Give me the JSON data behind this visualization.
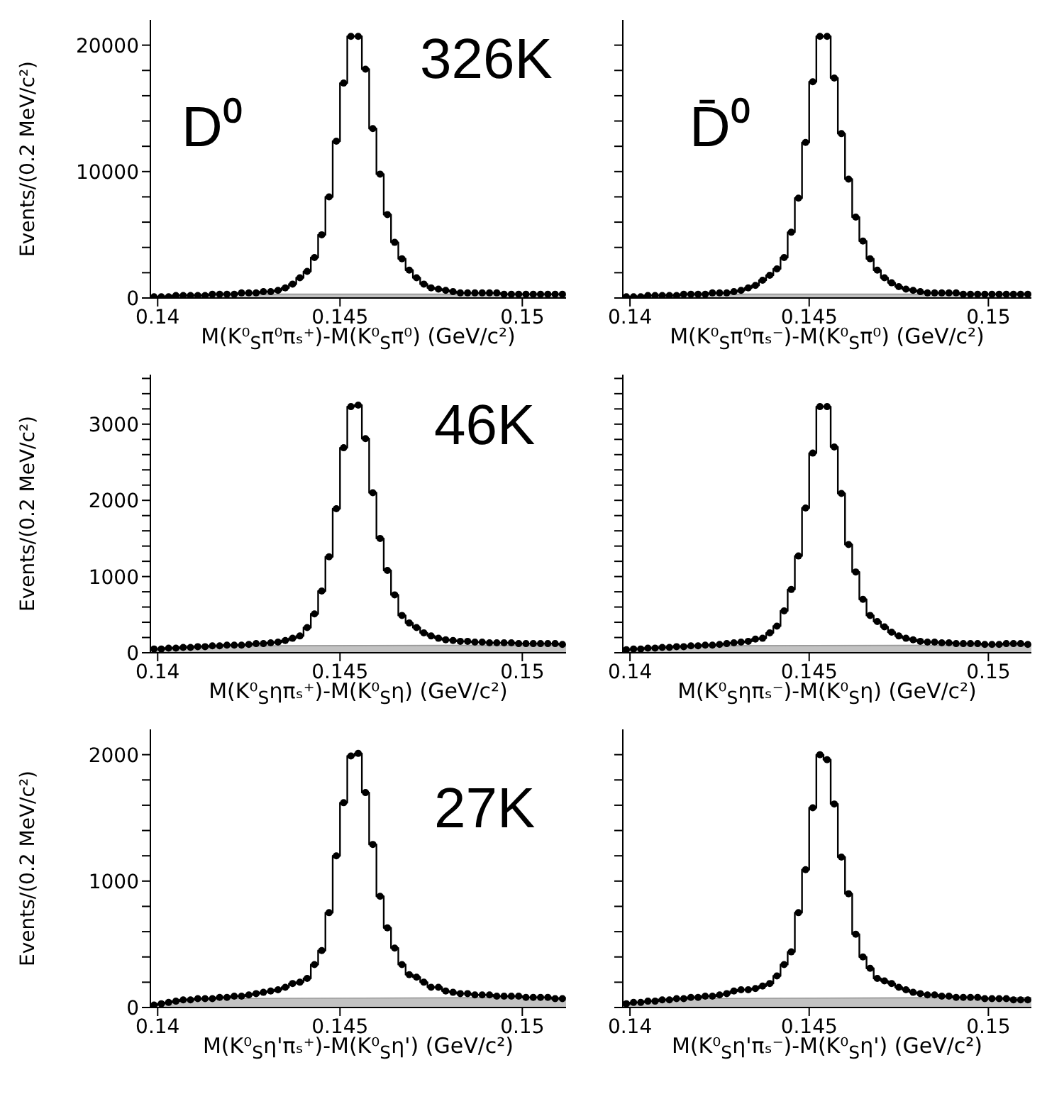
{
  "chart_data": [
    {
      "type": "step",
      "xlabel": "M(K⁰$_{S}$π⁰πₛ⁺)-M(K⁰$_{S}$π⁰) (GeV/c²)",
      "ylabel": "Events/(0.2 MeV/c²)",
      "annotations": [
        "D⁰",
        "326K"
      ],
      "xlim": [
        0.1398,
        0.1512
      ],
      "xticks": [
        0.14,
        0.145,
        0.15
      ],
      "ylim": [
        0,
        22000
      ],
      "yticks": [
        0,
        {
          "value": 2000,
          "label": null
        },
        {
          "value": 4000,
          "label": null
        },
        {
          "value": 6000,
          "label": null
        },
        {
          "value": 8000,
          "label": null
        },
        10000,
        {
          "value": 12000,
          "label": null
        },
        {
          "value": 14000,
          "label": null
        },
        {
          "value": 16000,
          "label": null
        },
        {
          "value": 18000,
          "label": null
        },
        20000
      ],
      "x": [
        0.1399,
        0.1401,
        0.1403,
        0.1405,
        0.1407,
        0.1409,
        0.1411,
        0.1413,
        0.1415,
        0.1417,
        0.1419,
        0.1421,
        0.1423,
        0.1425,
        0.1427,
        0.1429,
        0.1431,
        0.1433,
        0.1435,
        0.1437,
        0.1439,
        0.1441,
        0.1443,
        0.1445,
        0.1447,
        0.1449,
        0.1451,
        0.1453,
        0.1455,
        0.1457,
        0.1459,
        0.1461,
        0.1463,
        0.1465,
        0.1467,
        0.1469,
        0.1471,
        0.1473,
        0.1475,
        0.1477,
        0.1479,
        0.1481,
        0.1483,
        0.1485,
        0.1487,
        0.1489,
        0.1491,
        0.1493,
        0.1495,
        0.1497,
        0.1499,
        0.1501,
        0.1503,
        0.1505,
        0.1507,
        0.1509,
        0.1511
      ],
      "series": [
        {
          "type": "area",
          "color": "#999999",
          "x": [
            0.1398,
            0.1402,
            0.1408,
            0.1512
          ],
          "values": [
            0,
            200,
            300,
            300
          ]
        },
        {
          "color": "#000000",
          "marker": "circle",
          "values": [
            100,
            100,
            100,
            200,
            200,
            200,
            200,
            200,
            300,
            300,
            300,
            300,
            400,
            400,
            400,
            500,
            500,
            600,
            800,
            1100,
            1600,
            2100,
            3200,
            5000,
            8000,
            12400,
            17000,
            20700,
            20700,
            18100,
            13400,
            9800,
            6600,
            4400,
            3100,
            2200,
            1600,
            1100,
            800,
            700,
            600,
            500,
            400,
            400,
            400,
            400,
            400,
            400,
            300,
            300,
            300,
            300,
            300,
            300,
            300,
            300,
            300
          ]
        }
      ]
    },
    {
      "type": "step",
      "xlabel": "M(K⁰$_{S}$π⁰πₛ⁻)-M(K⁰$_{S}$π⁰) (GeV/c²)",
      "annotations": [
        "D̄⁰"
      ],
      "tick_labels": "x",
      "xlim": [
        0.1398,
        0.1512
      ],
      "xticks": [
        0.14,
        0.145,
        0.15
      ],
      "ylim": [
        0,
        22000
      ],
      "yticks": [
        0,
        {
          "value": 2000,
          "label": null
        },
        {
          "value": 4000,
          "label": null
        },
        {
          "value": 6000,
          "label": null
        },
        {
          "value": 8000,
          "label": null
        },
        10000,
        {
          "value": 12000,
          "label": null
        },
        {
          "value": 14000,
          "label": null
        },
        {
          "value": 16000,
          "label": null
        },
        {
          "value": 18000,
          "label": null
        },
        20000
      ],
      "x": [
        0.1399,
        0.1401,
        0.1403,
        0.1405,
        0.1407,
        0.1409,
        0.1411,
        0.1413,
        0.1415,
        0.1417,
        0.1419,
        0.1421,
        0.1423,
        0.1425,
        0.1427,
        0.1429,
        0.1431,
        0.1433,
        0.1435,
        0.1437,
        0.1439,
        0.1441,
        0.1443,
        0.1445,
        0.1447,
        0.1449,
        0.1451,
        0.1453,
        0.1455,
        0.1457,
        0.1459,
        0.1461,
        0.1463,
        0.1465,
        0.1467,
        0.1469,
        0.1471,
        0.1473,
        0.1475,
        0.1477,
        0.1479,
        0.1481,
        0.1483,
        0.1485,
        0.1487,
        0.1489,
        0.1491,
        0.1493,
        0.1495,
        0.1497,
        0.1499,
        0.1501,
        0.1503,
        0.1505,
        0.1507,
        0.1509,
        0.1511
      ],
      "series": [
        {
          "type": "area",
          "color": "#999999",
          "x": [
            0.1398,
            0.1402,
            0.1408,
            0.1512
          ],
          "values": [
            0,
            200,
            300,
            300
          ]
        },
        {
          "color": "#000000",
          "marker": "circle",
          "values": [
            100,
            100,
            100,
            200,
            200,
            200,
            200,
            200,
            300,
            300,
            300,
            300,
            400,
            400,
            400,
            500,
            600,
            800,
            1000,
            1400,
            1800,
            2300,
            3200,
            5200,
            7900,
            12300,
            17100,
            20700,
            20700,
            17400,
            13000,
            9400,
            6400,
            4500,
            3100,
            2200,
            1600,
            1200,
            900,
            700,
            600,
            500,
            400,
            400,
            400,
            400,
            400,
            300,
            300,
            300,
            300,
            300,
            300,
            300,
            300,
            300,
            300
          ]
        }
      ]
    },
    {
      "type": "step",
      "xlabel": "M(K⁰$_{S}$ηπₛ⁺)-M(K⁰$_{S}$η) (GeV/c²)",
      "ylabel": "Events/(0.2 MeV/c²)",
      "annotations": [
        "46K"
      ],
      "xlim": [
        0.1398,
        0.1512
      ],
      "xticks": [
        0.14,
        0.145,
        0.15
      ],
      "ylim": [
        0,
        3650
      ],
      "yticks": [
        0,
        {
          "value": 200,
          "label": null
        },
        {
          "value": 400,
          "label": null
        },
        {
          "value": 600,
          "label": null
        },
        {
          "value": 800,
          "label": null
        },
        1000,
        {
          "value": 1200,
          "label": null
        },
        {
          "value": 1400,
          "label": null
        },
        {
          "value": 1600,
          "label": null
        },
        {
          "value": 1800,
          "label": null
        },
        2000,
        {
          "value": 2200,
          "label": null
        },
        {
          "value": 2400,
          "label": null
        },
        {
          "value": 2600,
          "label": null
        },
        {
          "value": 2800,
          "label": null
        },
        3000,
        {
          "value": 3200,
          "label": null
        },
        {
          "value": 3400,
          "label": null
        },
        {
          "value": 3600,
          "label": null
        }
      ],
      "x": [
        0.1399,
        0.1401,
        0.1403,
        0.1405,
        0.1407,
        0.1409,
        0.1411,
        0.1413,
        0.1415,
        0.1417,
        0.1419,
        0.1421,
        0.1423,
        0.1425,
        0.1427,
        0.1429,
        0.1431,
        0.1433,
        0.1435,
        0.1437,
        0.1439,
        0.1441,
        0.1443,
        0.1445,
        0.1447,
        0.1449,
        0.1451,
        0.1453,
        0.1455,
        0.1457,
        0.1459,
        0.1461,
        0.1463,
        0.1465,
        0.1467,
        0.1469,
        0.1471,
        0.1473,
        0.1475,
        0.1477,
        0.1479,
        0.1481,
        0.1483,
        0.1485,
        0.1487,
        0.1489,
        0.1491,
        0.1493,
        0.1495,
        0.1497,
        0.1499,
        0.1501,
        0.1503,
        0.1505,
        0.1507,
        0.1509,
        0.1511
      ],
      "series": [
        {
          "type": "area",
          "color": "#999999",
          "x": [
            0.1398,
            0.1402,
            0.1408,
            0.1512
          ],
          "values": [
            0,
            60,
            90,
            100
          ]
        },
        {
          "color": "#000000",
          "marker": "circle",
          "values": [
            50,
            50,
            60,
            60,
            70,
            70,
            80,
            80,
            90,
            90,
            100,
            100,
            100,
            110,
            120,
            120,
            130,
            140,
            160,
            190,
            220,
            330,
            510,
            810,
            1260,
            1890,
            2690,
            3230,
            3250,
            2810,
            2100,
            1500,
            1080,
            760,
            490,
            390,
            330,
            260,
            220,
            190,
            170,
            160,
            150,
            150,
            140,
            140,
            130,
            130,
            130,
            130,
            120,
            120,
            120,
            120,
            120,
            120,
            110
          ]
        }
      ]
    },
    {
      "type": "step",
      "xlabel": "M(K⁰$_{S}$ηπₛ⁻)-M(K⁰$_{S}$η) (GeV/c²)",
      "tick_labels": "x",
      "xlim": [
        0.1398,
        0.1512
      ],
      "xticks": [
        0.14,
        0.145,
        0.15
      ],
      "ylim": [
        0,
        3650
      ],
      "yticks": [
        0,
        {
          "value": 200,
          "label": null
        },
        {
          "value": 400,
          "label": null
        },
        {
          "value": 600,
          "label": null
        },
        {
          "value": 800,
          "label": null
        },
        1000,
        {
          "value": 1200,
          "label": null
        },
        {
          "value": 1400,
          "label": null
        },
        {
          "value": 1600,
          "label": null
        },
        {
          "value": 1800,
          "label": null
        },
        2000,
        {
          "value": 2200,
          "label": null
        },
        {
          "value": 2400,
          "label": null
        },
        {
          "value": 2600,
          "label": null
        },
        {
          "value": 2800,
          "label": null
        },
        3000,
        {
          "value": 3200,
          "label": null
        },
        {
          "value": 3400,
          "label": null
        },
        {
          "value": 3600,
          "label": null
        }
      ],
      "x": [
        0.1399,
        0.1401,
        0.1403,
        0.1405,
        0.1407,
        0.1409,
        0.1411,
        0.1413,
        0.1415,
        0.1417,
        0.1419,
        0.1421,
        0.1423,
        0.1425,
        0.1427,
        0.1429,
        0.1431,
        0.1433,
        0.1435,
        0.1437,
        0.1439,
        0.1441,
        0.1443,
        0.1445,
        0.1447,
        0.1449,
        0.1451,
        0.1453,
        0.1455,
        0.1457,
        0.1459,
        0.1461,
        0.1463,
        0.1465,
        0.1467,
        0.1469,
        0.1471,
        0.1473,
        0.1475,
        0.1477,
        0.1479,
        0.1481,
        0.1483,
        0.1485,
        0.1487,
        0.1489,
        0.1491,
        0.1493,
        0.1495,
        0.1497,
        0.1499,
        0.1501,
        0.1503,
        0.1505,
        0.1507,
        0.1509,
        0.1511
      ],
      "series": [
        {
          "type": "area",
          "color": "#999999",
          "x": [
            0.1398,
            0.1402,
            0.1408,
            0.1512
          ],
          "values": [
            0,
            60,
            90,
            100
          ]
        },
        {
          "color": "#000000",
          "marker": "circle",
          "values": [
            40,
            50,
            50,
            60,
            60,
            70,
            70,
            80,
            80,
            90,
            90,
            100,
            100,
            110,
            120,
            130,
            140,
            150,
            180,
            190,
            260,
            350,
            550,
            830,
            1270,
            1900,
            2620,
            3230,
            3230,
            2700,
            2090,
            1420,
            1060,
            700,
            490,
            410,
            340,
            270,
            220,
            190,
            170,
            150,
            140,
            140,
            130,
            130,
            120,
            120,
            120,
            120,
            110,
            110,
            110,
            120,
            120,
            120,
            110
          ]
        }
      ]
    },
    {
      "type": "step",
      "xlabel": "M(K⁰$_{S}$η'πₛ⁺)-M(K⁰$_{S}$η') (GeV/c²)",
      "ylabel": "Events/(0.2 MeV/c²)",
      "annotations": [
        "27K"
      ],
      "xlim": [
        0.1398,
        0.1512
      ],
      "xticks": [
        0.14,
        0.145,
        0.15
      ],
      "ylim": [
        0,
        2200
      ],
      "yticks": [
        0,
        {
          "value": 200,
          "label": null
        },
        {
          "value": 400,
          "label": null
        },
        {
          "value": 600,
          "label": null
        },
        {
          "value": 800,
          "label": null
        },
        1000,
        {
          "value": 1200,
          "label": null
        },
        {
          "value": 1400,
          "label": null
        },
        {
          "value": 1600,
          "label": null
        },
        {
          "value": 1800,
          "label": null
        },
        2000
      ],
      "x": [
        0.1399,
        0.1401,
        0.1403,
        0.1405,
        0.1407,
        0.1409,
        0.1411,
        0.1413,
        0.1415,
        0.1417,
        0.1419,
        0.1421,
        0.1423,
        0.1425,
        0.1427,
        0.1429,
        0.1431,
        0.1433,
        0.1435,
        0.1437,
        0.1439,
        0.1441,
        0.1443,
        0.1445,
        0.1447,
        0.1449,
        0.1451,
        0.1453,
        0.1455,
        0.1457,
        0.1459,
        0.1461,
        0.1463,
        0.1465,
        0.1467,
        0.1469,
        0.1471,
        0.1473,
        0.1475,
        0.1477,
        0.1479,
        0.1481,
        0.1483,
        0.1485,
        0.1487,
        0.1489,
        0.1491,
        0.1493,
        0.1495,
        0.1497,
        0.1499,
        0.1501,
        0.1503,
        0.1505,
        0.1507,
        0.1509,
        0.1511
      ],
      "series": [
        {
          "type": "area",
          "color": "#999999",
          "x": [
            0.1398,
            0.1402,
            0.1408,
            0.1512
          ],
          "values": [
            0,
            40,
            70,
            80
          ]
        },
        {
          "color": "#000000",
          "marker": "circle",
          "values": [
            20,
            30,
            40,
            50,
            60,
            60,
            70,
            70,
            70,
            80,
            80,
            90,
            90,
            100,
            110,
            120,
            130,
            140,
            160,
            190,
            200,
            230,
            340,
            450,
            750,
            1200,
            1620,
            1990,
            2010,
            1700,
            1290,
            880,
            630,
            470,
            340,
            260,
            240,
            200,
            160,
            160,
            130,
            120,
            110,
            110,
            100,
            100,
            100,
            90,
            90,
            90,
            90,
            80,
            80,
            80,
            80,
            70,
            70
          ]
        }
      ]
    },
    {
      "type": "step",
      "xlabel": "M(K⁰$_{S}$η'πₛ⁻)-M(K⁰$_{S}$η') (GeV/c²)",
      "tick_labels": "x",
      "xlim": [
        0.1398,
        0.1512
      ],
      "xticks": [
        0.14,
        0.145,
        0.15
      ],
      "ylim": [
        0,
        2200
      ],
      "yticks": [
        0,
        {
          "value": 200,
          "label": null
        },
        {
          "value": 400,
          "label": null
        },
        {
          "value": 600,
          "label": null
        },
        {
          "value": 800,
          "label": null
        },
        1000,
        {
          "value": 1200,
          "label": null
        },
        {
          "value": 1400,
          "label": null
        },
        {
          "value": 1600,
          "label": null
        },
        {
          "value": 1800,
          "label": null
        },
        2000
      ],
      "x": [
        0.1399,
        0.1401,
        0.1403,
        0.1405,
        0.1407,
        0.1409,
        0.1411,
        0.1413,
        0.1415,
        0.1417,
        0.1419,
        0.1421,
        0.1423,
        0.1425,
        0.1427,
        0.1429,
        0.1431,
        0.1433,
        0.1435,
        0.1437,
        0.1439,
        0.1441,
        0.1443,
        0.1445,
        0.1447,
        0.1449,
        0.1451,
        0.1453,
        0.1455,
        0.1457,
        0.1459,
        0.1461,
        0.1463,
        0.1465,
        0.1467,
        0.1469,
        0.1471,
        0.1473,
        0.1475,
        0.1477,
        0.1479,
        0.1481,
        0.1483,
        0.1485,
        0.1487,
        0.1489,
        0.1491,
        0.1493,
        0.1495,
        0.1497,
        0.1499,
        0.1501,
        0.1503,
        0.1505,
        0.1507,
        0.1509,
        0.1511
      ],
      "series": [
        {
          "type": "area",
          "color": "#999999",
          "x": [
            0.1398,
            0.1402,
            0.1408,
            0.1512
          ],
          "values": [
            0,
            40,
            70,
            80
          ]
        },
        {
          "color": "#000000",
          "marker": "circle",
          "values": [
            30,
            40,
            40,
            50,
            50,
            60,
            60,
            70,
            70,
            80,
            80,
            90,
            90,
            100,
            110,
            130,
            140,
            140,
            150,
            170,
            190,
            250,
            340,
            440,
            750,
            1090,
            1580,
            2000,
            1960,
            1610,
            1190,
            900,
            580,
            400,
            310,
            230,
            210,
            190,
            160,
            140,
            120,
            110,
            100,
            100,
            90,
            90,
            80,
            80,
            80,
            80,
            70,
            70,
            70,
            70,
            60,
            60,
            60
          ]
        }
      ]
    }
  ]
}
